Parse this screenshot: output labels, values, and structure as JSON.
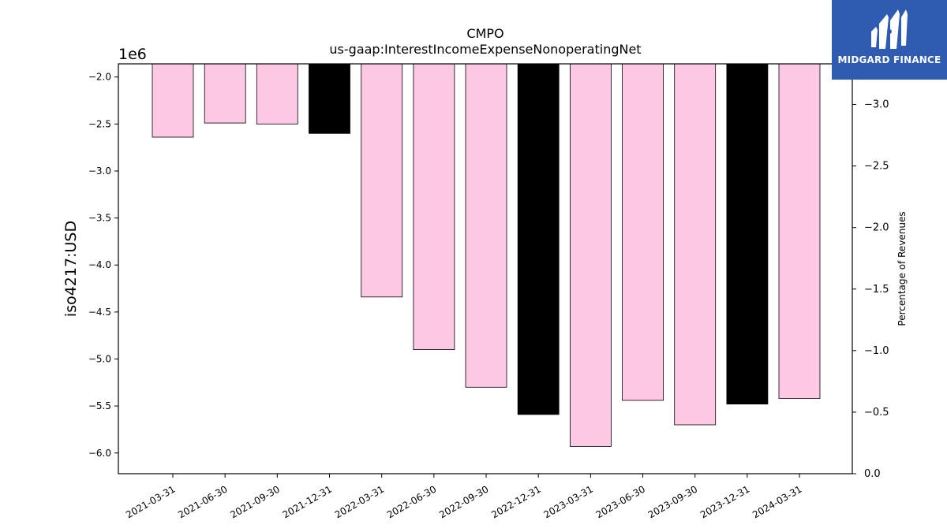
{
  "chart_data": {
    "type": "bar",
    "title": "CMPO",
    "subtitle": "us-gaap:InterestIncomeExpenseNonoperatingNet",
    "ylabel": "iso4217:USD",
    "y2label": "Percentage of Revenues",
    "y_multiplier": "1e6",
    "ylim": [
      -6.22,
      -1.86
    ],
    "y2lim": [
      0.0,
      -3.33
    ],
    "yticks": [
      "−2.0",
      "−2.5",
      "−3.0",
      "−3.5",
      "−4.0",
      "−4.5",
      "−5.0",
      "−5.5",
      "−6.0"
    ],
    "y2ticks": [
      "0.0",
      "−0.5",
      "−1.0",
      "−1.5",
      "−2.0",
      "−2.5",
      "−3.0"
    ],
    "categories": [
      "2021-03-31",
      "2021-06-30",
      "2021-09-30",
      "2021-12-31",
      "2022-03-31",
      "2022-06-30",
      "2022-09-30",
      "2022-12-31",
      "2023-03-31",
      "2023-06-30",
      "2023-09-30",
      "2023-12-31",
      "2024-03-31"
    ],
    "values": [
      -2.64,
      -2.49,
      -2.5,
      -2.6,
      -4.34,
      -4.9,
      -5.3,
      -5.59,
      -5.93,
      -5.44,
      -5.7,
      -5.48,
      -5.42
    ],
    "bar_colors": [
      "#fcc8e4",
      "#fcc8e4",
      "#fcc8e4",
      "#000000",
      "#fcc8e4",
      "#fcc8e4",
      "#fcc8e4",
      "#000000",
      "#fcc8e4",
      "#fcc8e4",
      "#fcc8e4",
      "#000000",
      "#fcc8e4"
    ],
    "grid": false
  },
  "brand": {
    "name": "MIDGARD FINANCE",
    "color": "#2f5bb0"
  }
}
